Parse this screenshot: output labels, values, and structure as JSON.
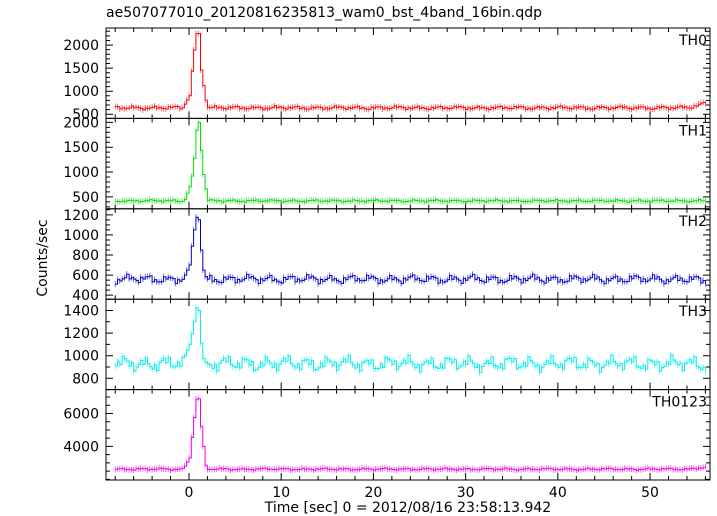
{
  "title": "ae507077010_20120816235813_wam0_bst_4band_16bin.qdp",
  "ylabel": "Counts/sec",
  "xlabel": "Time [sec] 0 = 2012/08/16 23:58:13.942",
  "chart_data": {
    "type": "line",
    "title": "ae507077010_20120816235813_wam0_bst_4band_16bin.qdp",
    "xlabel": "Time [sec] 0 = 2012/08/16 23:58:13.942",
    "ylabel": "Counts/sec",
    "xlim": [
      -9,
      56.5
    ],
    "x_ticks": [
      0,
      10,
      20,
      30,
      40,
      50
    ],
    "x_tick_labels": [
      "0",
      "10",
      "20",
      "30",
      "40",
      "50"
    ],
    "x_minor_step": 2,
    "sample_step": 0.25,
    "noise_period": 2.2,
    "panels": [
      {
        "name": "TH0",
        "color": "#ff0000",
        "ylim": [
          410,
          2370
        ],
        "yticks": [
          500,
          1000,
          1500,
          2000
        ],
        "ytick_labels": [
          "500",
          "1000",
          "1500",
          "2000"
        ],
        "y_minor_step": 100,
        "baseline": 640,
        "noise": 40,
        "peak_x": [
          -0.5,
          0.0,
          0.4,
          0.8,
          1.0,
          1.2,
          1.4,
          1.6,
          2.0
        ],
        "peak_y": [
          720,
          900,
          1750,
          2320,
          2250,
          1500,
          1350,
          900,
          650
        ],
        "end_y": 750
      },
      {
        "name": "TH1",
        "color": "#00e000",
        "ylim": [
          260,
          2080
        ],
        "yticks": [
          500,
          1000,
          1500,
          2000
        ],
        "ytick_labels": [
          "500",
          "1000",
          "1500",
          "2000"
        ],
        "y_minor_step": 100,
        "baseline": 420,
        "noise": 25,
        "peak_x": [
          -0.5,
          0.0,
          0.4,
          0.8,
          1.0,
          1.2,
          1.4,
          1.6,
          2.0
        ],
        "peak_y": [
          450,
          700,
          1050,
          1950,
          2000,
          1550,
          1100,
          800,
          430
        ],
        "end_y": 420
      },
      {
        "name": "TH2",
        "color": "#0000cc",
        "ylim": [
          360,
          1260
        ],
        "yticks": [
          400,
          600,
          800,
          1000,
          1200
        ],
        "ytick_labels": [
          "400",
          "600",
          "800",
          "1000",
          "1200"
        ],
        "y_minor_step": 50,
        "baseline": 560,
        "noise": 45,
        "peak_x": [
          -0.5,
          0.0,
          0.4,
          0.8,
          1.0,
          1.2,
          1.4,
          1.6,
          2.0
        ],
        "peak_y": [
          600,
          700,
          1000,
          1200,
          1150,
          900,
          700,
          600,
          560
        ],
        "end_y": 540
      },
      {
        "name": "TH3",
        "color": "#00eeee",
        "ylim": [
          700,
          1500
        ],
        "yticks": [
          800,
          1000,
          1200,
          1400
        ],
        "ytick_labels": [
          "800",
          "1000",
          "1200",
          "1400"
        ],
        "y_minor_step": 100,
        "baseline": 930,
        "noise": 70,
        "peak_x": [
          -0.5,
          0.0,
          0.4,
          0.8,
          1.0,
          1.2,
          1.4,
          1.6,
          2.0
        ],
        "peak_y": [
          1000,
          1100,
          1250,
          1450,
          1400,
          1150,
          1000,
          950,
          930
        ],
        "end_y": 920
      },
      {
        "name": "TH0123",
        "color": "#ee00ee",
        "ylim": [
          1960,
          7450
        ],
        "yticks": [
          4000,
          6000
        ],
        "ytick_labels": [
          "4000",
          "6000"
        ],
        "y_minor_step": 500,
        "baseline": 2620,
        "noise": 70,
        "peak_x": [
          -0.5,
          0.0,
          0.4,
          0.8,
          1.0,
          1.2,
          1.4,
          1.6,
          2.0
        ],
        "peak_y": [
          2800,
          3300,
          5300,
          7100,
          6900,
          5300,
          5000,
          3000,
          2600
        ],
        "end_y": 2750
      }
    ]
  }
}
